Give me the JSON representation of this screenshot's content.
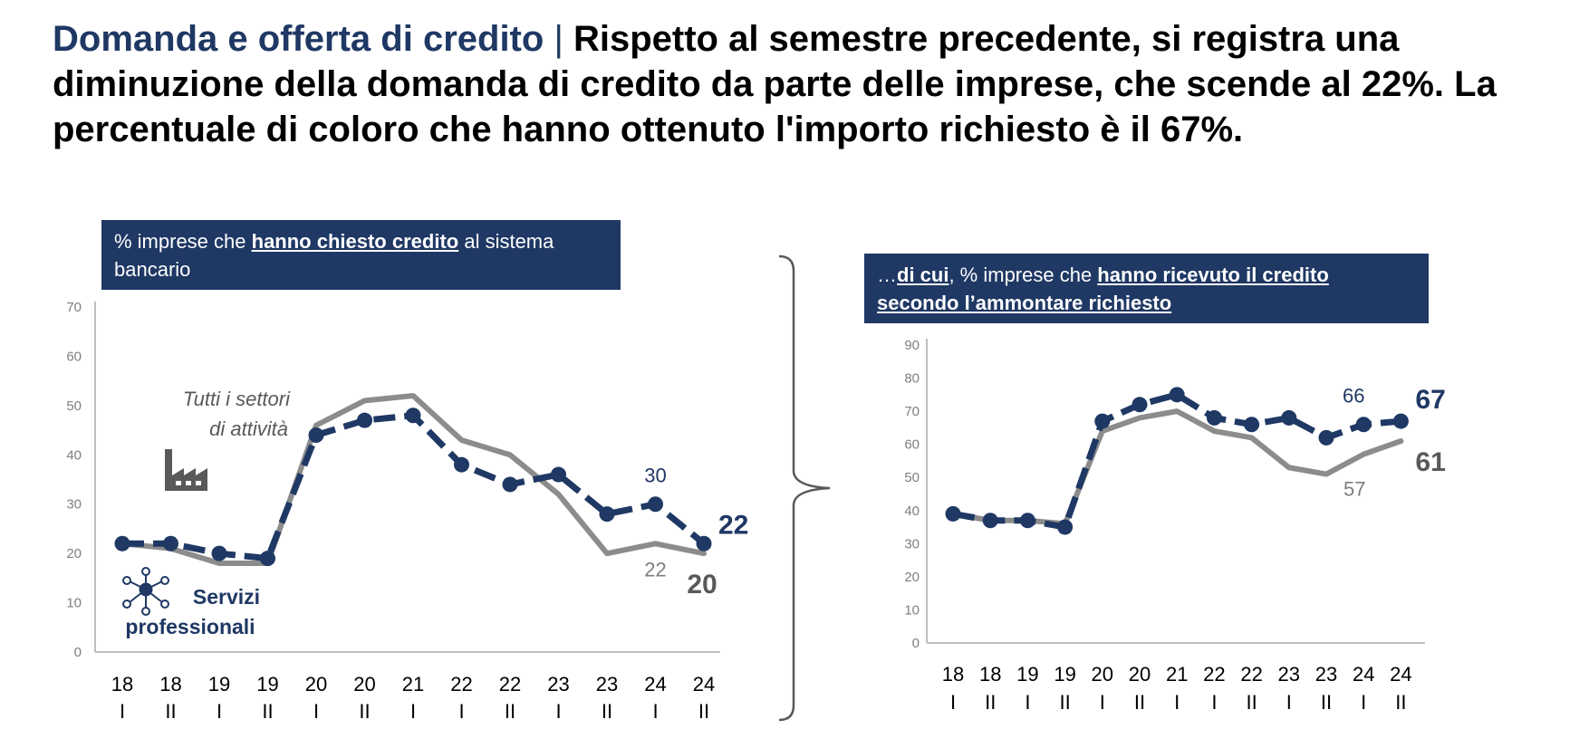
{
  "header": {
    "topic": "Domanda e offerta di credito",
    "separator": "|",
    "headline": "Rispetto al semestre precedente, si registra una diminuzione della domanda di credito da parte delle imprese, che scende al 22%. La percentuale di coloro che hanno ottenuto l'importo richiesto è il 67%."
  },
  "left_panel": {
    "label_pre": "% imprese che ",
    "label_emph": "hanno chiesto credito",
    "label_post": " al sistema bancario",
    "series_note_all": "Tutti i settori di attività",
    "series_note_all_line1": "Tutti i settori",
    "series_note_all_line2": "di attività",
    "series_note_prof_line1": "Servizi",
    "series_note_prof_line2": "professionali"
  },
  "right_panel": {
    "label_pre": "…",
    "label_emph1": "di cui",
    "label_mid": ", % imprese che ",
    "label_emph2": "hanno ricevuto il credito secondo l’ammontare richiesto"
  },
  "colors": {
    "navy": "#1f3864",
    "gray": "#8c8c8c",
    "axis": "#bfbfbf",
    "tick_text": "#7f7f7f"
  },
  "icons": {
    "left_all_sectors": "factory-icon",
    "left_professional": "network-people-icon",
    "bracket": "curly-brace-icon"
  },
  "chart_data": [
    {
      "type": "line",
      "categories": [
        "18 I",
        "18 II",
        "19 I",
        "19 II",
        "20 I",
        "20 II",
        "21 I",
        "22 I",
        "22 II",
        "23 I",
        "23 II",
        "24 I",
        "24 II"
      ],
      "x_year": [
        "18",
        "18",
        "19",
        "19",
        "20",
        "20",
        "21",
        "22",
        "22",
        "23",
        "23",
        "24",
        "24"
      ],
      "x_sem": [
        "I",
        "II",
        "I",
        "II",
        "I",
        "II",
        "I",
        "I",
        "II",
        "I",
        "II",
        "I",
        "II"
      ],
      "ylim": [
        0,
        70
      ],
      "yticks": [
        0,
        10,
        20,
        30,
        40,
        50,
        60,
        70
      ],
      "series": [
        {
          "name": "Servizi professionali",
          "color": "#1f3864",
          "style": "dash-dot-markers",
          "values": [
            22,
            22,
            20,
            19,
            44,
            47,
            48,
            38,
            34,
            36,
            28,
            30,
            22
          ]
        },
        {
          "name": "Tutti i settori di attività",
          "color": "#8c8c8c",
          "style": "solid",
          "values": [
            22,
            21,
            18,
            18,
            46,
            51,
            52,
            43,
            40,
            32,
            20,
            22,
            20
          ]
        }
      ],
      "data_labels": [
        {
          "series": 0,
          "index": 11,
          "text": "30"
        },
        {
          "series": 0,
          "index": 12,
          "text": "22"
        },
        {
          "series": 1,
          "index": 11,
          "text": "22"
        },
        {
          "series": 1,
          "index": 12,
          "text": "20"
        }
      ]
    },
    {
      "type": "line",
      "categories": [
        "18 I",
        "18 II",
        "19 I",
        "19 II",
        "20 I",
        "20 II",
        "21 I",
        "22 I",
        "22 II",
        "23 I",
        "23 II",
        "24 I",
        "24 II"
      ],
      "x_year": [
        "18",
        "18",
        "19",
        "19",
        "20",
        "20",
        "21",
        "22",
        "22",
        "23",
        "23",
        "24",
        "24"
      ],
      "x_sem": [
        "I",
        "II",
        "I",
        "II",
        "I",
        "II",
        "I",
        "I",
        "II",
        "I",
        "II",
        "I",
        "II"
      ],
      "ylim": [
        0,
        90
      ],
      "yticks": [
        0,
        10,
        20,
        30,
        40,
        50,
        60,
        70,
        80,
        90
      ],
      "series": [
        {
          "name": "Servizi professionali",
          "color": "#1f3864",
          "style": "dash-dot-markers",
          "values": [
            39,
            37,
            37,
            35,
            67,
            72,
            75,
            68,
            66,
            68,
            62,
            66,
            67
          ]
        },
        {
          "name": "Tutti i settori di attività",
          "color": "#8c8c8c",
          "style": "solid",
          "values": [
            39,
            37,
            37,
            36,
            64,
            68,
            70,
            64,
            62,
            53,
            51,
            57,
            61
          ]
        }
      ],
      "data_labels": [
        {
          "series": 0,
          "index": 11,
          "text": "66"
        },
        {
          "series": 0,
          "index": 12,
          "text": "67"
        },
        {
          "series": 1,
          "index": 11,
          "text": "57"
        },
        {
          "series": 1,
          "index": 12,
          "text": "61"
        }
      ]
    }
  ]
}
